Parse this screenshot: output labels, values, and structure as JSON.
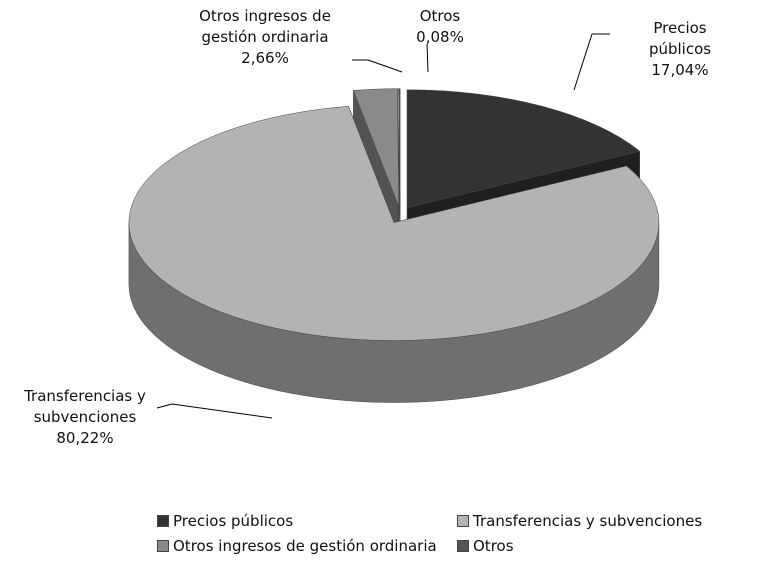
{
  "chart_data": {
    "type": "pie3d",
    "categories": [
      "Precios públicos",
      "Transferencias y subvenciones",
      "Otros ingresos de gestión ordinaria",
      "Otros"
    ],
    "values": [
      17.04,
      80.22,
      2.66,
      0.08
    ],
    "value_labels": [
      "17,04%",
      "80,22%",
      "2,66%",
      "0,08%"
    ],
    "colors": [
      "#333333",
      "#b3b3b3",
      "#8a8a8a",
      "#555555"
    ]
  }
}
